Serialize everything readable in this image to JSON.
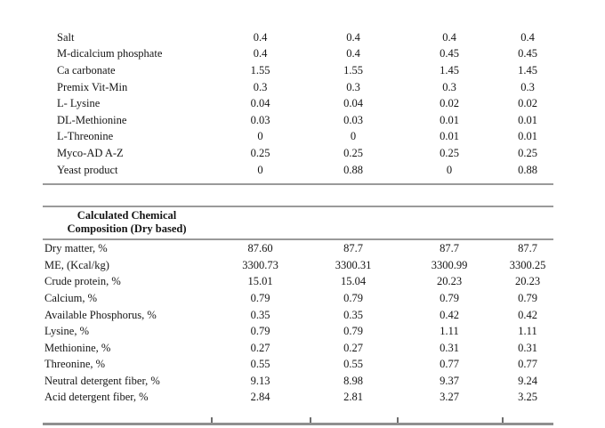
{
  "page": {
    "background": "#ffffff",
    "text_color": "#151515",
    "rule_color": "#9a9a9a",
    "bottom_rule_color": "#8f8f8f"
  },
  "ingredients_table": {
    "rows": [
      {
        "label": "Salt",
        "values": [
          "0.4",
          "0.4",
          "0.4",
          "0.4"
        ]
      },
      {
        "label": "M-dicalcium phosphate",
        "values": [
          "0.4",
          "0.4",
          "0.45",
          "0.45"
        ]
      },
      {
        "label": "Ca carbonate",
        "values": [
          "1.55",
          "1.55",
          "1.45",
          "1.45"
        ]
      },
      {
        "label": "Premix Vit-Min",
        "values": [
          "0.3",
          "0.3",
          "0.3",
          "0.3"
        ]
      },
      {
        "label": "L- Lysine",
        "values": [
          "0.04",
          "0.04",
          "0.02",
          "0.02"
        ]
      },
      {
        "label": "DL-Methionine",
        "values": [
          "0.03",
          "0.03",
          "0.01",
          "0.01"
        ]
      },
      {
        "label": "L-Threonine",
        "values": [
          "0",
          "0",
          "0.01",
          "0.01"
        ]
      },
      {
        "label": "Myco-AD  A-Z",
        "values": [
          "0.25",
          "0.25",
          "0.25",
          "0.25"
        ]
      },
      {
        "label": "Yeast product",
        "values": [
          "0",
          "0.88",
          "0",
          "0.88"
        ]
      }
    ]
  },
  "composition_table": {
    "header_line1": "Calculated Chemical",
    "header_line2": "Composition (Dry based)",
    "rows": [
      {
        "label": "Dry matter, %",
        "values": [
          "87.60",
          "87.7",
          "87.7",
          "87.7"
        ]
      },
      {
        "label": "ME, (Kcal/kg)",
        "values": [
          "3300.73",
          "3300.31",
          "3300.99",
          "3300.25"
        ]
      },
      {
        "label": "Crude protein, %",
        "values": [
          "15.01",
          "15.04",
          "20.23",
          "20.23"
        ]
      },
      {
        "label": "Calcium, %",
        "values": [
          "0.79",
          "0.79",
          "0.79",
          "0.79"
        ]
      },
      {
        "label": "Available Phosphorus, %",
        "values": [
          "0.35",
          "0.35",
          "0.42",
          "0.42"
        ]
      },
      {
        "label": "Lysine, %",
        "values": [
          "0.79",
          "0.79",
          "1.11",
          "1.11"
        ]
      },
      {
        "label": "Methionine, %",
        "values": [
          "0.27",
          "0.27",
          "0.31",
          "0.31"
        ]
      },
      {
        "label": "Threonine, %",
        "values": [
          "0.55",
          "0.55",
          "0.77",
          "0.77"
        ]
      },
      {
        "label": "Neutral detergent fiber, %",
        "values": [
          "9.13",
          "8.98",
          "9.37",
          "9.24"
        ]
      },
      {
        "label": "Acid detergent fiber, %",
        "values": [
          "2.84",
          "2.81",
          "3.27",
          "3.25"
        ]
      }
    ]
  }
}
